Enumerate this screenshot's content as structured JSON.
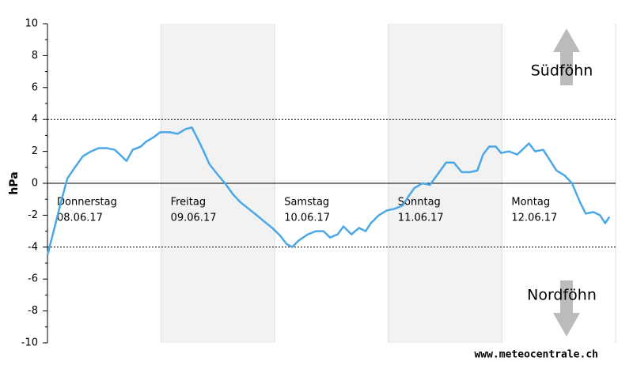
{
  "chart_data": {
    "type": "line",
    "y_label": "hPa",
    "annotations": {
      "upper": "Südföhn",
      "lower": "Nordföhn",
      "source": "www.meteocentrale.ch"
    },
    "days": [
      {
        "weekday": "Donnerstag",
        "date": "08.06.17"
      },
      {
        "weekday": "Freitag",
        "date": "09.06.17"
      },
      {
        "weekday": "Samstag",
        "date": "10.06.17"
      },
      {
        "weekday": "Sonntag",
        "date": "11.06.17"
      },
      {
        "weekday": "Montag",
        "date": "12.06.17"
      }
    ],
    "day_starts": [
      0,
      24,
      48,
      72,
      96
    ],
    "shaded_days": [
      1,
      3
    ],
    "xlim": [
      0,
      120
    ],
    "ylim": [
      -10,
      10
    ],
    "yticks": [
      -10,
      -8,
      -6,
      -4,
      -2,
      0,
      2,
      4,
      6,
      8,
      10
    ],
    "yminorticks": [
      -9,
      -7,
      -5,
      -3,
      -1,
      1,
      3,
      5,
      7,
      9
    ],
    "reference_lines": [
      4,
      -4
    ],
    "series": [
      {
        "color": "#4aa8e8",
        "x": [
          0,
          1.3,
          3,
          4.2,
          5.8,
          7.5,
          9.2,
          10.8,
          12.5,
          14.2,
          15.3,
          16.7,
          18,
          19.7,
          20.8,
          22.5,
          23.8,
          25.8,
          27.5,
          29.2,
          30.5,
          31.7,
          33,
          34.2,
          35.8,
          37.5,
          39.2,
          40.8,
          42.5,
          44.2,
          45.8,
          47.5,
          49.2,
          50.5,
          51.7,
          53,
          55,
          56.7,
          58.3,
          59.7,
          61.3,
          62.5,
          64.2,
          65.8,
          67.2,
          68.3,
          70,
          71.7,
          73.3,
          75,
          76.3,
          77.5,
          79.2,
          80.8,
          82.5,
          84.2,
          85.8,
          87.5,
          89.2,
          90.8,
          92,
          93.3,
          94.7,
          95.8,
          97.5,
          99.2,
          100.3,
          101.7,
          103,
          104.7,
          105.8,
          107.5,
          109.2,
          110.8,
          112.5,
          113.7,
          115.3,
          116.7,
          117.8,
          118.7
        ],
        "values": [
          -4.5,
          -3,
          -1,
          0.3,
          1,
          1.7,
          2,
          2.2,
          2.2,
          2.1,
          1.8,
          1.4,
          2.1,
          2.3,
          2.6,
          2.9,
          3.2,
          3.2,
          3.1,
          3.4,
          3.5,
          2.8,
          2,
          1.2,
          0.6,
          0,
          -0.7,
          -1.2,
          -1.6,
          -2,
          -2.4,
          -2.8,
          -3.3,
          -3.8,
          -4,
          -3.6,
          -3.2,
          -3,
          -3,
          -3.4,
          -3.2,
          -2.7,
          -3.2,
          -2.8,
          -3,
          -2.5,
          -2,
          -1.7,
          -1.6,
          -1.4,
          -0.8,
          -0.3,
          0,
          -0.1,
          0.6,
          1.3,
          1.3,
          0.7,
          0.7,
          0.8,
          1.8,
          2.3,
          2.3,
          1.9,
          2,
          1.8,
          2.1,
          2.5,
          2,
          2.1,
          1.6,
          0.8,
          0.5,
          0,
          -1.2,
          -1.9,
          -1.8,
          -2,
          -2.5,
          -2.1
        ]
      }
    ]
  }
}
